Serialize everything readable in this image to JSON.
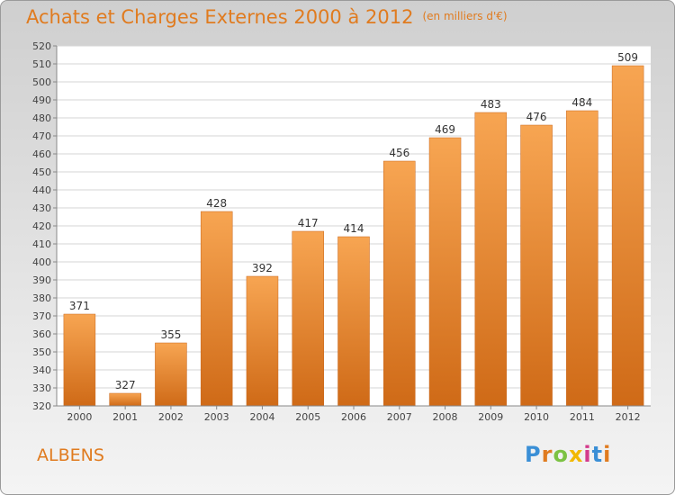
{
  "title": "Achats et Charges Externes 2000 à 2012",
  "subtitle": "(en milliers d'€)",
  "commune": "ALBENS",
  "logo": {
    "letters": [
      "P",
      "r",
      "o",
      "x",
      "i",
      "t",
      "i"
    ],
    "colors": [
      "#3a8fd6",
      "#e07b1f",
      "#7cc243",
      "#f2b800",
      "#d43a8c",
      "#3a8fd6",
      "#e07b1f"
    ]
  },
  "colors": {
    "bar_top": "#f7a552",
    "bar_bottom": "#cf6a17",
    "accent": "#e07b1f"
  },
  "chart_data": {
    "type": "bar",
    "categories": [
      "2000",
      "2001",
      "2002",
      "2003",
      "2004",
      "2005",
      "2006",
      "2007",
      "2008",
      "2009",
      "2010",
      "2011",
      "2012"
    ],
    "values": [
      371,
      327,
      355,
      428,
      392,
      417,
      414,
      456,
      469,
      483,
      476,
      484,
      509
    ],
    "title": "Achats et Charges Externes 2000 à 2012",
    "xlabel": "",
    "ylabel": "",
    "ylim": [
      320,
      520
    ],
    "yticks": [
      320,
      330,
      340,
      350,
      360,
      370,
      380,
      390,
      400,
      410,
      420,
      430,
      440,
      450,
      460,
      470,
      480,
      490,
      500,
      510,
      520
    ],
    "grid": true,
    "legend": "none"
  }
}
